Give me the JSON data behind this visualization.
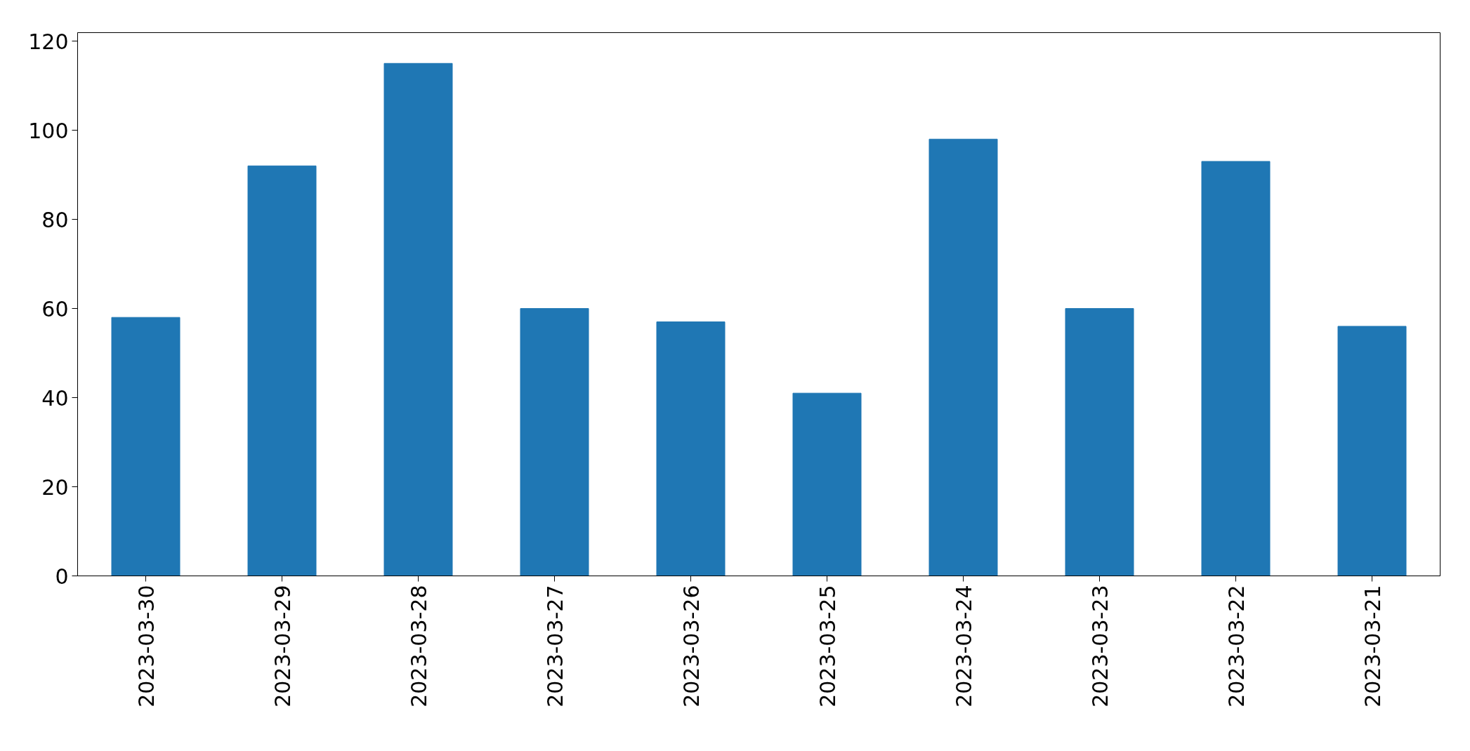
{
  "chart_data": {
    "type": "bar",
    "categories": [
      "2023-03-30",
      "2023-03-29",
      "2023-03-28",
      "2023-03-27",
      "2023-03-26",
      "2023-03-25",
      "2023-03-24",
      "2023-03-23",
      "2023-03-22",
      "2023-03-21"
    ],
    "values": [
      58,
      92,
      115,
      60,
      57,
      41,
      98,
      60,
      93,
      56
    ],
    "color": "#1f77b4",
    "ylim": [
      0,
      121.9
    ],
    "yticks": [
      0,
      20,
      40,
      60,
      80,
      100,
      120
    ],
    "grid": false
  }
}
